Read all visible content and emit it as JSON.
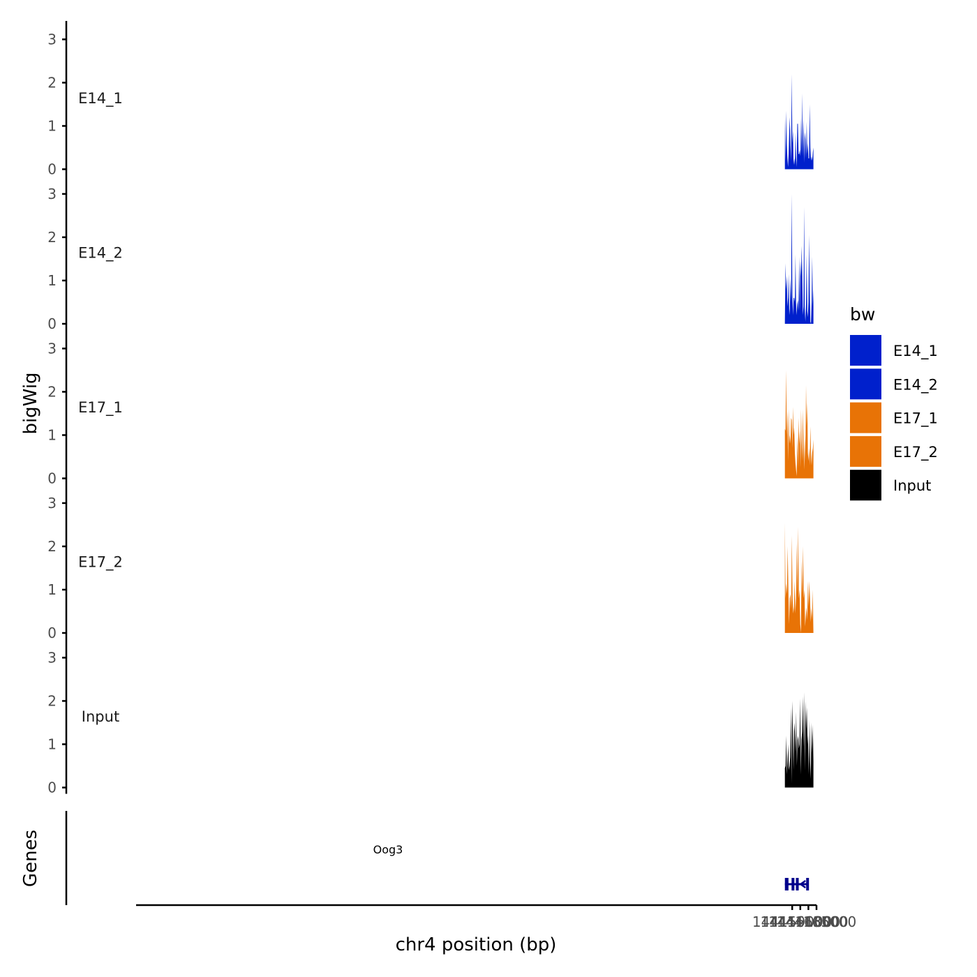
{
  "chart_data": {
    "type": "area",
    "ylabel": "bigWig",
    "xlabel": "chr4 position (bp)",
    "xlim": [
      143997000,
      144165000
    ],
    "ylim": [
      0,
      3.2
    ],
    "y_ticks": [
      0,
      1,
      2,
      3
    ],
    "x_ticks": [
      144159000,
      144161000,
      144163000,
      144165000
    ],
    "x_tick_labels": [
      "144159000",
      "144161000",
      "144163000",
      "144165000"
    ],
    "data_x_range": [
      144157200,
      144164250
    ],
    "legend_title": "bw",
    "legend_placement": "right",
    "series": [
      {
        "name": "E14_1",
        "color": "#0020CC",
        "values": [
          1.2,
          0.2,
          1.35,
          0.6,
          0.25,
          0.05,
          0.35,
          0.9,
          1.2,
          0.55,
          0.2,
          2.2,
          0.6,
          0.9,
          0.1,
          0.25,
          0.1,
          0.85,
          0.3,
          0.05,
          1.05,
          1.05,
          0.35,
          0.35,
          0.45,
          0.3,
          1.2,
          0.35,
          1.75,
          0.3,
          1.2,
          0.15,
          0.85,
          0.7,
          0.25,
          1.1,
          0.35,
          0.6,
          0.25,
          0.25,
          1.5,
          0.5,
          0.2,
          0.3,
          0.2,
          0.4,
          0.5
        ]
      },
      {
        "name": "E14_2",
        "color": "#0020CC",
        "values": [
          0.05,
          1.4,
          0.8,
          1.1,
          0.4,
          0.6,
          1.15,
          0.2,
          0.35,
          1.05,
          0.5,
          3.0,
          0.65,
          0.2,
          0.6,
          0.6,
          0.5,
          1.6,
          0.5,
          0.2,
          0.45,
          0.55,
          0.3,
          1.55,
          0.3,
          1.45,
          1.1,
          1.8,
          1.1,
          0.2,
          0.4,
          2.7,
          0.35,
          0.05,
          0.45,
          1.6,
          0.3,
          0.15,
          0.5,
          2.05,
          0.8,
          0.05,
          0.0,
          0.5,
          1.55,
          0.4,
          0.8
        ]
      },
      {
        "name": "E17_1",
        "color": "#E87306",
        "values": [
          1.15,
          1.1,
          2.5,
          1.0,
          1.6,
          0.4,
          1.6,
          0.8,
          1.0,
          0.8,
          1.4,
          1.35,
          0.7,
          1.65,
          1.0,
          1.2,
          0.6,
          0.35,
          0.2,
          0.05,
          1.0,
          0.25,
          1.4,
          0.8,
          1.1,
          0.25,
          1.6,
          0.9,
          0.4,
          1.6,
          0.8,
          0.2,
          1.0,
          0.4,
          2.15,
          1.2,
          1.75,
          0.6,
          0.4,
          0.7,
          0.3,
          1.2,
          0.6,
          0.3,
          0.6,
          0.7,
          0.9
        ]
      },
      {
        "name": "E17_2",
        "color": "#E87306",
        "values": [
          2.55,
          0.8,
          1.15,
          0.9,
          2.0,
          1.0,
          0.2,
          0.8,
          0.9,
          0.55,
          2.25,
          0.8,
          0.45,
          0.6,
          1.2,
          0.45,
          0.8,
          2.1,
          0.9,
          2.45,
          0.8,
          1.0,
          0.2,
          0.0,
          1.7,
          0.9,
          2.0,
          0.8,
          1.0,
          0.15,
          0.4,
          0.6,
          0.3,
          1.2,
          0.6,
          1.2,
          0.8,
          0.25,
          0.6,
          0.3,
          1.0,
          0.0
        ]
      },
      {
        "name": "Input",
        "color": "#000000",
        "values": [
          0.45,
          0.5,
          1.2,
          0.3,
          0.6,
          1.0,
          0.4,
          0.5,
          0.7,
          1.85,
          0.1,
          2.0,
          1.3,
          0.4,
          1.5,
          1.3,
          0.8,
          1.75,
          0.5,
          1.1,
          1.2,
          0.9,
          1.0,
          2.05,
          0.3,
          1.1,
          1.3,
          2.1,
          0.9,
          2.2,
          0.4,
          2.0,
          1.3,
          1.85,
          1.2,
          1.0,
          0.3,
          1.55,
          0.6,
          0.2,
          1.5,
          0.8,
          1.45,
          0.6
        ]
      }
    ],
    "genes": [
      {
        "name": "Oog3",
        "strand": "-",
        "start": 144157200,
        "end": 144162520,
        "exons": [
          [
            144157200,
            144158080
          ],
          [
            144158850,
            144159430
          ],
          [
            144159920,
            144160230
          ],
          [
            144162450,
            144162520
          ]
        ]
      }
    ],
    "genes_track_label": "Genes"
  },
  "legend": [
    {
      "label": "E14_1",
      "color": "#0020CC"
    },
    {
      "label": "E14_2",
      "color": "#0020CC"
    },
    {
      "label": "E17_1",
      "color": "#E87306"
    },
    {
      "label": "E17_2",
      "color": "#E87306"
    },
    {
      "label": "Input",
      "color": "#000000"
    }
  ],
  "colors": {
    "gene": "#00008B",
    "axis": "#000000"
  }
}
